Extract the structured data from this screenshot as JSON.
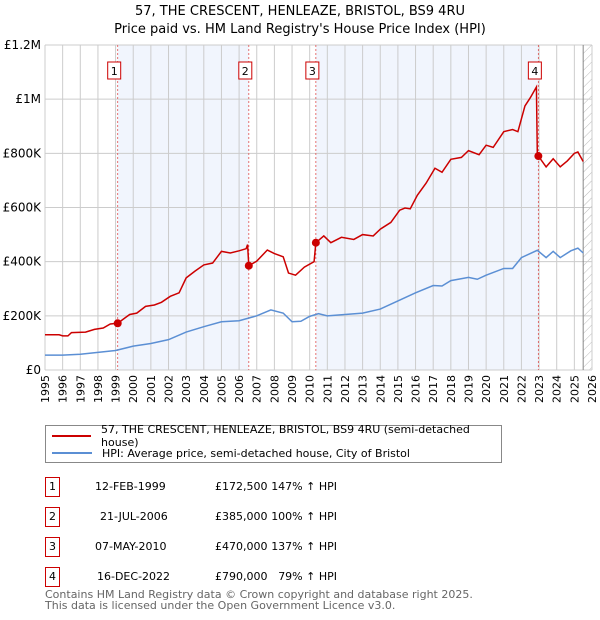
{
  "chart_data": {
    "type": "line",
    "title": "57, THE CRESCENT, HENLEAZE, BRISTOL, BS9 4RU",
    "subtitle": "Price paid vs. HM Land Registry's House Price Index (HPI)",
    "xlim": [
      1995,
      2026
    ],
    "ylim": [
      0,
      1200000
    ],
    "x_ticks": [
      "1995",
      "1996",
      "1997",
      "1998",
      "1999",
      "2000",
      "2001",
      "2002",
      "2003",
      "2004",
      "2005",
      "2006",
      "2007",
      "2008",
      "2009",
      "2010",
      "2011",
      "2012",
      "2013",
      "2014",
      "2015",
      "2016",
      "2017",
      "2018",
      "2019",
      "2020",
      "2021",
      "2022",
      "2023",
      "2024",
      "2025",
      "2026"
    ],
    "y_ticks": [
      {
        "v": 0,
        "label": "£0"
      },
      {
        "v": 200000,
        "label": "£200K"
      },
      {
        "v": 400000,
        "label": "£400K"
      },
      {
        "v": 600000,
        "label": "£600K"
      },
      {
        "v": 800000,
        "label": "£800K"
      },
      {
        "v": 1000000,
        "label": "£1M"
      },
      {
        "v": 1200000,
        "label": "£1.2M"
      }
    ],
    "grid": true,
    "series": [
      {
        "name": "57, THE CRESCENT, HENLEAZE, BRISTOL, BS9 4RU (semi-detached house)",
        "color": "#cc0000",
        "points": [
          [
            1995,
            130000
          ],
          [
            1995.8,
            130000
          ],
          [
            1996,
            126000
          ],
          [
            1996.3,
            126000
          ],
          [
            1996.5,
            138000
          ],
          [
            1997.3,
            140000
          ],
          [
            1997.8,
            150000
          ],
          [
            1998.3,
            155000
          ],
          [
            1998.7,
            170000
          ],
          [
            1999.12,
            172500
          ],
          [
            1999.8,
            205000
          ],
          [
            2000.2,
            210000
          ],
          [
            2000.7,
            235000
          ],
          [
            2001.2,
            240000
          ],
          [
            2001.6,
            250000
          ],
          [
            2002.1,
            272000
          ],
          [
            2002.6,
            285000
          ],
          [
            2003,
            340000
          ],
          [
            2003.5,
            365000
          ],
          [
            2004,
            388000
          ],
          [
            2004.5,
            395000
          ],
          [
            2005,
            438000
          ],
          [
            2005.5,
            432000
          ],
          [
            2006,
            440000
          ],
          [
            2006.4,
            448000
          ],
          [
            2006.48,
            463000
          ],
          [
            2006.55,
            385000
          ],
          [
            2007,
            402000
          ],
          [
            2007.6,
            443000
          ],
          [
            2008,
            430000
          ],
          [
            2008.5,
            418000
          ],
          [
            2008.8,
            358000
          ],
          [
            2009.2,
            350000
          ],
          [
            2009.7,
            380000
          ],
          [
            2010.25,
            400000
          ],
          [
            2010.35,
            470000
          ],
          [
            2010.8,
            495000
          ],
          [
            2011.2,
            470000
          ],
          [
            2011.8,
            490000
          ],
          [
            2012.5,
            482000
          ],
          [
            2013,
            500000
          ],
          [
            2013.6,
            495000
          ],
          [
            2014,
            520000
          ],
          [
            2014.6,
            545000
          ],
          [
            2015.1,
            590000
          ],
          [
            2015.4,
            598000
          ],
          [
            2015.7,
            595000
          ],
          [
            2016.1,
            645000
          ],
          [
            2016.6,
            690000
          ],
          [
            2017.1,
            745000
          ],
          [
            2017.5,
            730000
          ],
          [
            2018,
            778000
          ],
          [
            2018.6,
            785000
          ],
          [
            2019,
            810000
          ],
          [
            2019.6,
            795000
          ],
          [
            2020,
            830000
          ],
          [
            2020.4,
            822000
          ],
          [
            2021,
            880000
          ],
          [
            2021.5,
            888000
          ],
          [
            2021.8,
            880000
          ],
          [
            2022.2,
            975000
          ],
          [
            2022.5,
            1005000
          ],
          [
            2022.85,
            1045000
          ],
          [
            2022.9,
            800000
          ],
          [
            2022.96,
            790000
          ],
          [
            2023.4,
            750000
          ],
          [
            2023.8,
            780000
          ],
          [
            2024.2,
            750000
          ],
          [
            2024.6,
            772000
          ],
          [
            2025,
            800000
          ],
          [
            2025.2,
            805000
          ],
          [
            2025.5,
            770000
          ]
        ]
      },
      {
        "name": "HPI: Average price, semi-detached house, City of Bristol",
        "color": "#5b8fd4",
        "points": [
          [
            1995,
            55000
          ],
          [
            1996,
            55000
          ],
          [
            1997,
            58000
          ],
          [
            1998,
            65000
          ],
          [
            1999,
            72000
          ],
          [
            2000,
            88000
          ],
          [
            2001,
            98000
          ],
          [
            2002,
            112000
          ],
          [
            2003,
            140000
          ],
          [
            2004,
            160000
          ],
          [
            2005,
            178000
          ],
          [
            2006,
            182000
          ],
          [
            2007,
            200000
          ],
          [
            2007.8,
            222000
          ],
          [
            2008.5,
            210000
          ],
          [
            2009,
            178000
          ],
          [
            2009.5,
            180000
          ],
          [
            2010,
            198000
          ],
          [
            2010.5,
            208000
          ],
          [
            2011,
            200000
          ],
          [
            2012,
            205000
          ],
          [
            2013,
            210000
          ],
          [
            2014,
            225000
          ],
          [
            2015,
            255000
          ],
          [
            2016,
            285000
          ],
          [
            2017,
            312000
          ],
          [
            2017.5,
            310000
          ],
          [
            2018,
            330000
          ],
          [
            2019,
            342000
          ],
          [
            2019.5,
            335000
          ],
          [
            2020,
            350000
          ],
          [
            2021,
            375000
          ],
          [
            2021.5,
            375000
          ],
          [
            2022,
            415000
          ],
          [
            2022.9,
            442000
          ],
          [
            2023.4,
            415000
          ],
          [
            2023.8,
            438000
          ],
          [
            2024.2,
            415000
          ],
          [
            2024.8,
            440000
          ],
          [
            2025.2,
            450000
          ],
          [
            2025.5,
            432000
          ]
        ]
      }
    ],
    "sales": [
      {
        "n": "1",
        "x": 1999.12,
        "y": 172500
      },
      {
        "n": "2",
        "x": 2006.55,
        "y": 385000
      },
      {
        "n": "3",
        "x": 2010.35,
        "y": 470000
      },
      {
        "n": "4",
        "x": 2022.96,
        "y": 790000
      }
    ],
    "shaded_ranges": [
      [
        1999.12,
        2006.55
      ],
      [
        2010.35,
        2022.96
      ]
    ],
    "hatched_from": 2025.5,
    "legend_placement": "below"
  },
  "legend": [
    "57, THE CRESCENT, HENLEAZE, BRISTOL, BS9 4RU (semi-detached house)",
    "HPI: Average price, semi-detached house, City of Bristol"
  ],
  "table": [
    {
      "n": "1",
      "date": "12-FEB-1999",
      "price": "£172,500",
      "hpi": "147% ↑ HPI"
    },
    {
      "n": "2",
      "date": "21-JUL-2006",
      "price": "£385,000",
      "hpi": "100% ↑ HPI"
    },
    {
      "n": "3",
      "date": "07-MAY-2010",
      "price": "£470,000",
      "hpi": "137% ↑ HPI"
    },
    {
      "n": "4",
      "date": "16-DEC-2022",
      "price": "£790,000",
      "hpi": "79% ↑ HPI"
    }
  ],
  "footer": [
    "Contains HM Land Registry data © Crown copyright and database right 2025.",
    "This data is licensed under the Open Government Licence v3.0."
  ]
}
